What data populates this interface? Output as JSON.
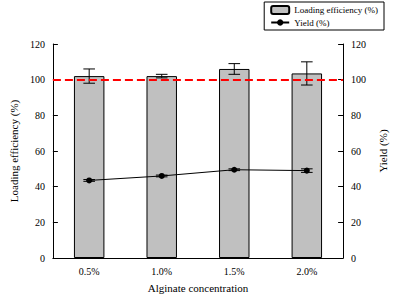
{
  "chart_data": {
    "type": "bar",
    "xlabel": "Alginate concentration",
    "ylabel": "Loading efficiency (%)",
    "y2label": "Yield (%)",
    "categories": [
      "0.5%",
      "1.0%",
      "1.5%",
      "2.0%"
    ],
    "ylim": [
      0,
      120
    ],
    "yticks": [
      0,
      20,
      40,
      60,
      80,
      100,
      120
    ],
    "y2lim": [
      0,
      120
    ],
    "y2ticks": [
      0,
      20,
      40,
      60,
      80,
      100,
      120
    ],
    "grid": false,
    "legend": "upper right",
    "series": [
      {
        "name": "Loading efficiency (%)",
        "type": "bar",
        "color": "#c0c0c0",
        "values": [
          102,
          102,
          106,
          103.5
        ],
        "errors": [
          4,
          1,
          3,
          6.5
        ]
      },
      {
        "name": "Yield (%)",
        "type": "line",
        "axis": "y2",
        "color": "#000000",
        "marker": "circle",
        "line_style": "solid",
        "values": [
          43.5,
          46,
          49.5,
          49
        ],
        "errors": [
          0.5,
          0.5,
          0.5,
          1
        ]
      }
    ],
    "reference_line": {
      "value": 100,
      "color": "#ff0000",
      "line_style": "dashed"
    }
  }
}
